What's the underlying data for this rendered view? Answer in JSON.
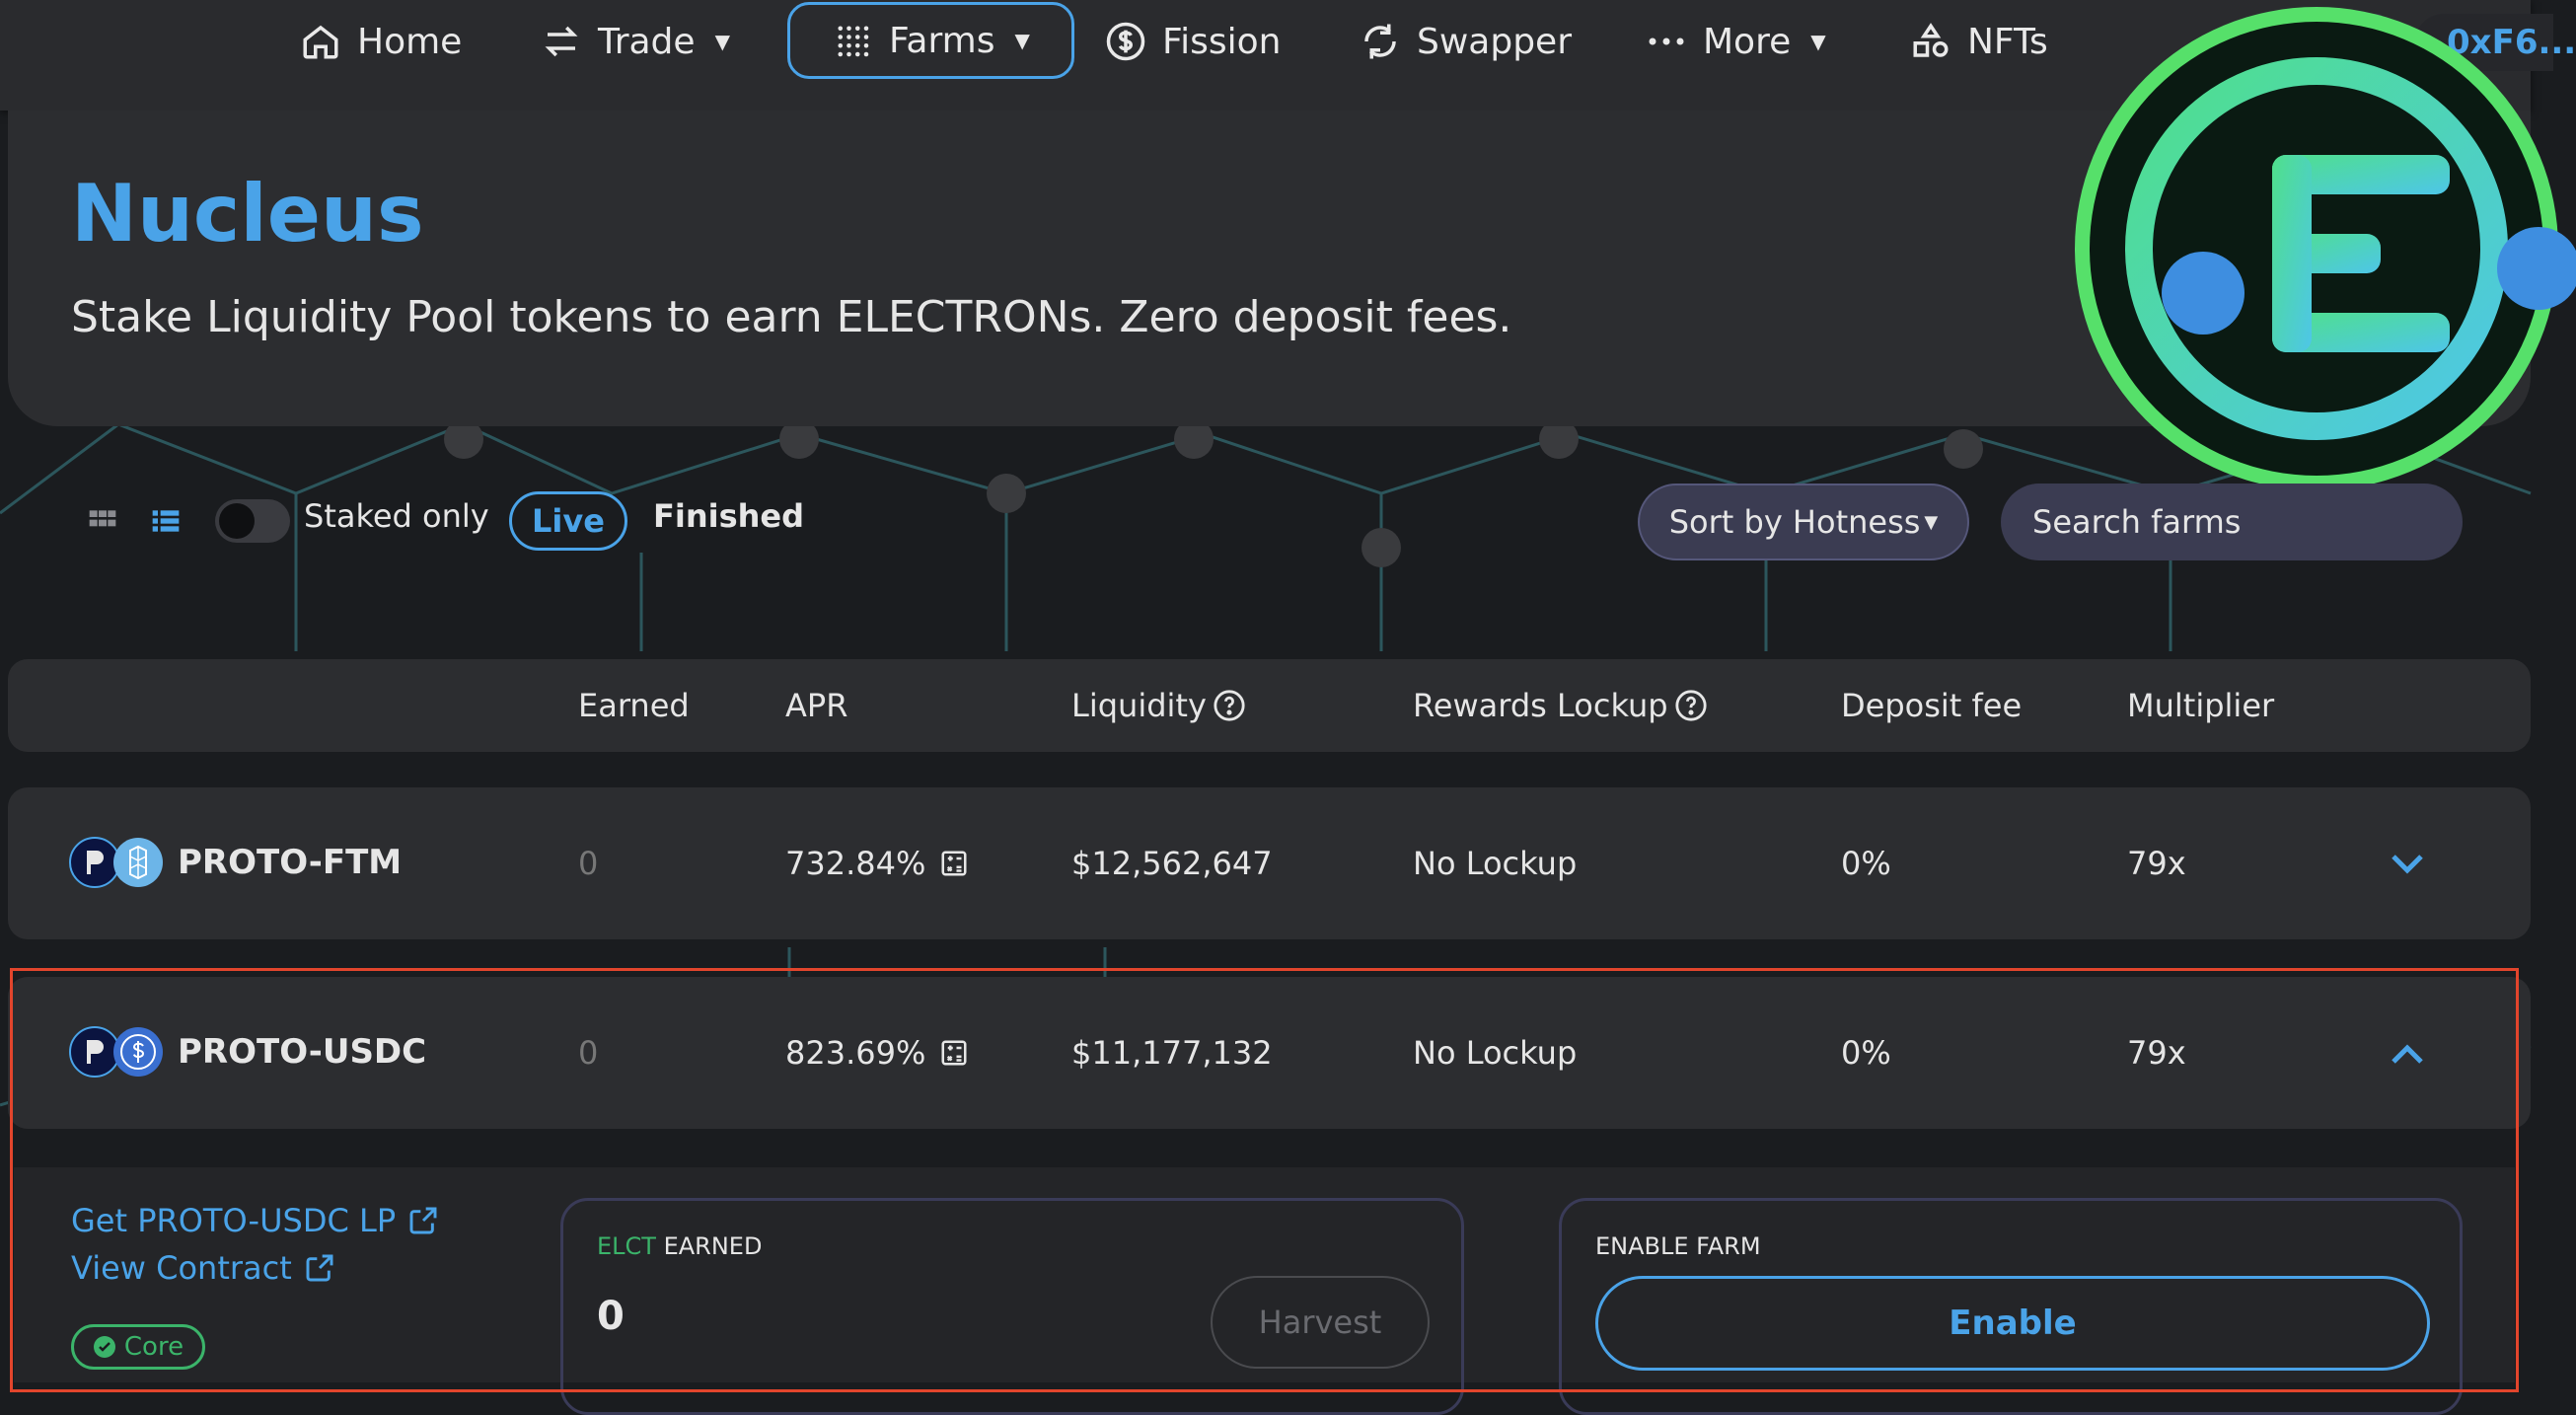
{
  "nav": {
    "home": "Home",
    "trade": "Trade",
    "farms": "Farms",
    "fission": "Fission",
    "swapper": "Swapper",
    "more": "More",
    "nfts": "NFTs",
    "address": "0xF6..."
  },
  "hero": {
    "title": "Nucleus",
    "subtitle": "Stake Liquidity Pool tokens to earn ELECTRONs. Zero deposit fees."
  },
  "filters": {
    "staked_only": "Staked only",
    "live": "Live",
    "finished": "Finished",
    "sort": "Sort by Hotness",
    "search_placeholder": "Search farms"
  },
  "table": {
    "headers": {
      "earned": "Earned",
      "apr": "APR",
      "liquidity": "Liquidity",
      "rewards_lockup": "Rewards Lockup",
      "deposit_fee": "Deposit fee",
      "multiplier": "Multiplier"
    },
    "rows": [
      {
        "name": "PROTO-FTM",
        "earned": "0",
        "apr": "732.84%",
        "liquidity": "$12,562,647",
        "lockup": "No Lockup",
        "fee": "0%",
        "multiplier": "79x",
        "expanded": false
      },
      {
        "name": "PROTO-USDC",
        "earned": "0",
        "apr": "823.69%",
        "liquidity": "$11,177,132",
        "lockup": "No Lockup",
        "fee": "0%",
        "multiplier": "79x",
        "expanded": true
      }
    ]
  },
  "detail": {
    "get_lp": "Get PROTO-USDC LP",
    "view_contract": "View Contract",
    "core": "Core",
    "earned_token": "ELCT",
    "earned_label": "EARNED",
    "earned_value": "0",
    "harvest": "Harvest",
    "enable_label": "ENABLE FARM",
    "enable": "Enable"
  },
  "colors": {
    "accent": "#4aa3e8",
    "highlight": "#e2452c",
    "core": "#3bb46a"
  }
}
